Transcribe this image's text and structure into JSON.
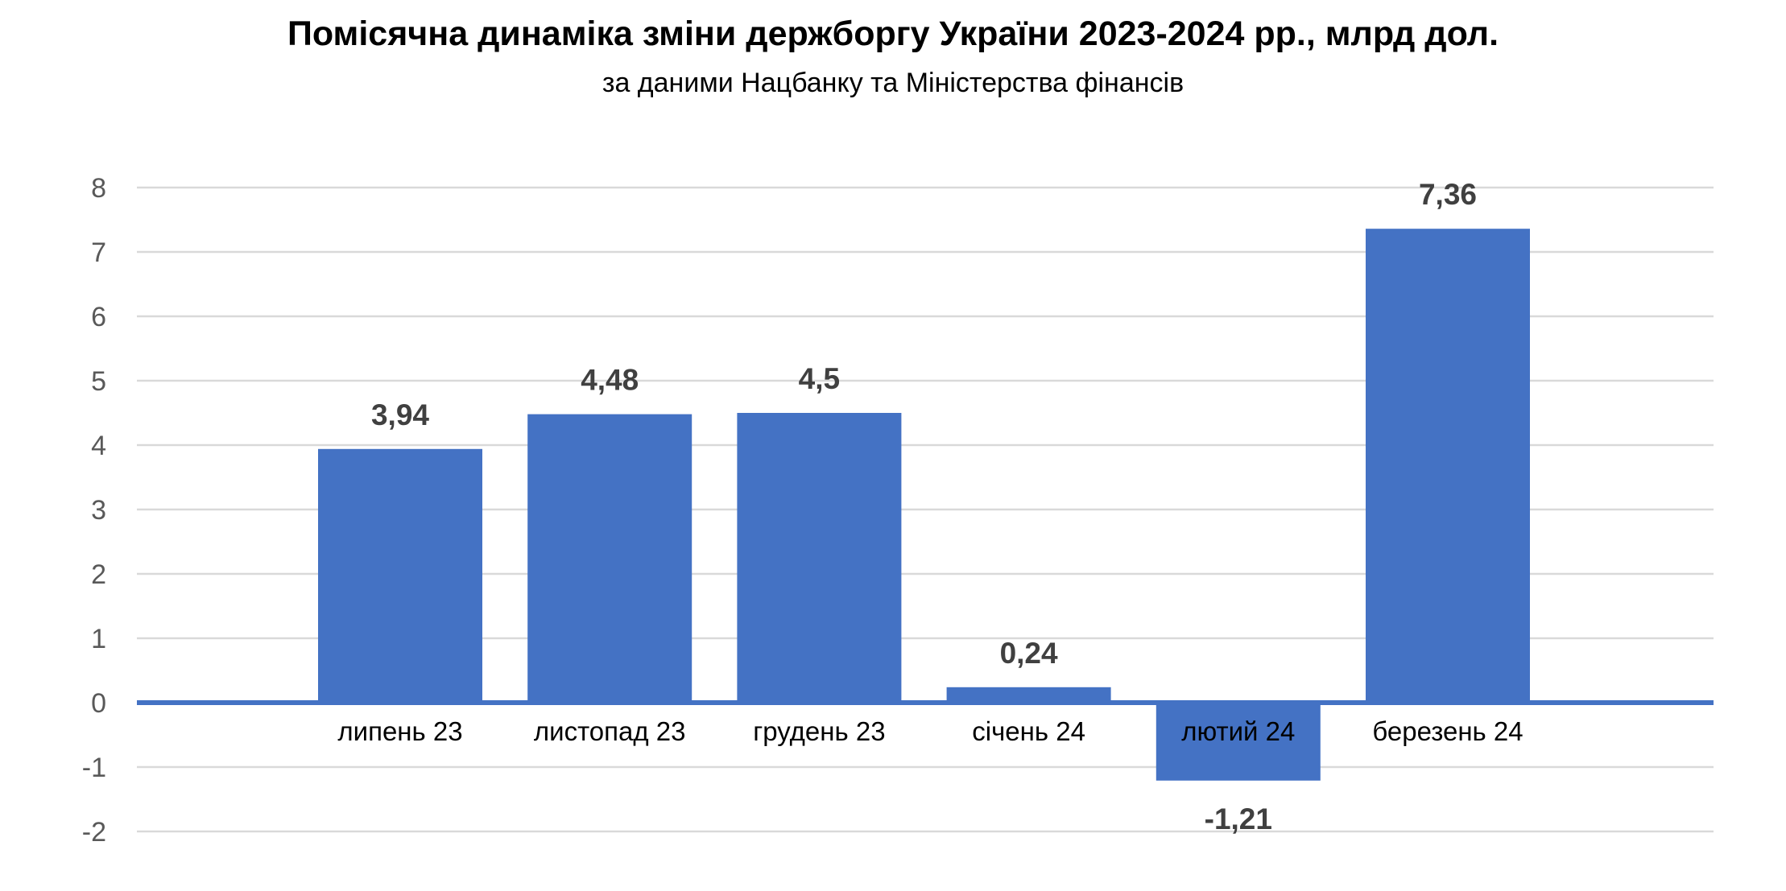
{
  "chart_data": {
    "type": "bar",
    "title": "Помісячна динаміка зміни держборгу України 2023-2024 рр., млрд дол.",
    "subtitle": "за даними Нацбанку та Міністерства фінансів",
    "categories": [
      "липень 23",
      "листопад 23",
      "грудень 23",
      "січень 24",
      "лютий 24",
      "березень 24"
    ],
    "values": [
      3.94,
      4.48,
      4.5,
      0.24,
      -1.21,
      7.36
    ],
    "data_labels": [
      "3,94",
      "4,48",
      "4,5",
      "0,24",
      "-1,21",
      "7,36"
    ],
    "y_ticks": [
      "-2",
      "-1",
      "0",
      "1",
      "2",
      "3",
      "4",
      "5",
      "6",
      "7",
      "8"
    ],
    "ylim": [
      -2,
      8
    ],
    "grid": true,
    "legend": "none",
    "colors": {
      "bar": "#4472C4",
      "zero_axis": "#4472C4",
      "grid": "#D9D9D9",
      "tick_text": "#595959",
      "data_label_text": "#404040",
      "category_text": "#000000",
      "category_text_on_bar": "#FFFFFF"
    }
  }
}
